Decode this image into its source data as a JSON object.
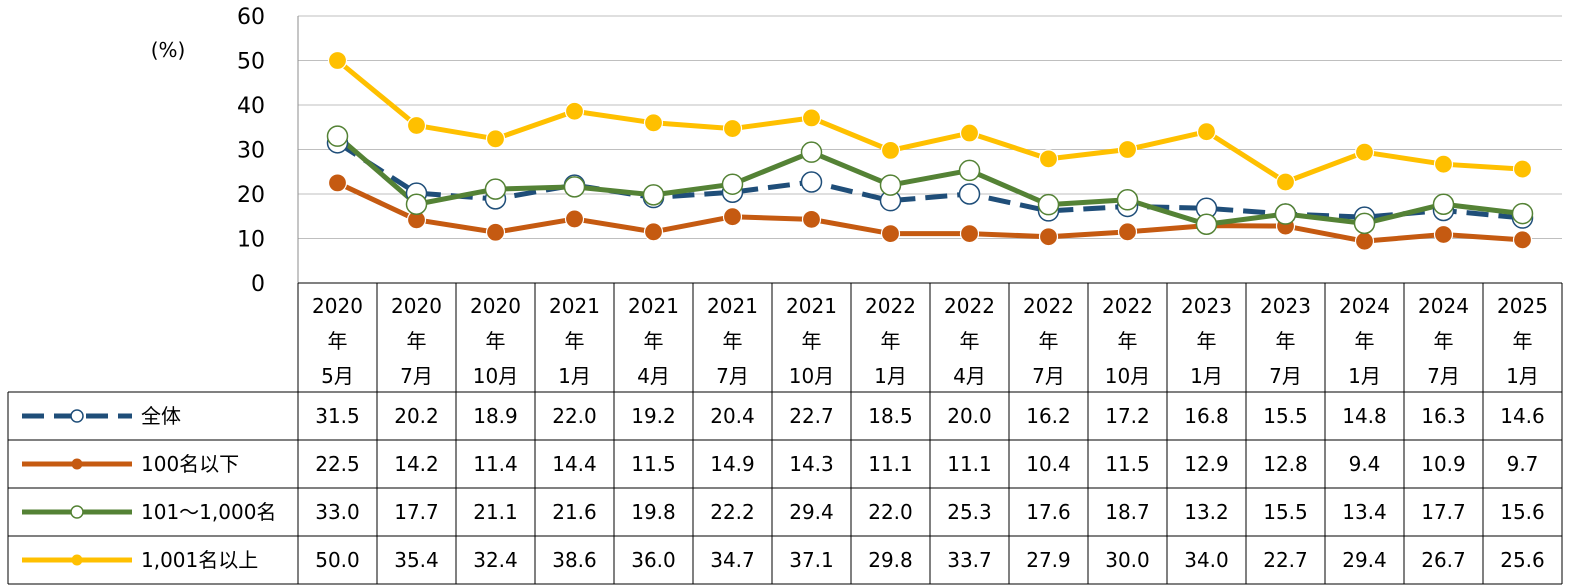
{
  "chart_data": {
    "type": "line",
    "ylabel": "(%)",
    "ylim": [
      0,
      60
    ],
    "yticks": [
      "0",
      "10",
      "20",
      "30",
      "40",
      "50",
      "60"
    ],
    "grid": true,
    "legend": "table-left",
    "categories": [
      {
        "year": "2020",
        "nen": "年",
        "month": "5月"
      },
      {
        "year": "2020",
        "nen": "年",
        "month": "7月"
      },
      {
        "year": "2020",
        "nen": "年",
        "month": "10月"
      },
      {
        "year": "2021",
        "nen": "年",
        "month": "1月"
      },
      {
        "year": "2021",
        "nen": "年",
        "month": "4月"
      },
      {
        "year": "2021",
        "nen": "年",
        "month": "7月"
      },
      {
        "year": "2021",
        "nen": "年",
        "month": "10月"
      },
      {
        "year": "2022",
        "nen": "年",
        "month": "1月"
      },
      {
        "year": "2022",
        "nen": "年",
        "month": "4月"
      },
      {
        "year": "2022",
        "nen": "年",
        "month": "7月"
      },
      {
        "year": "2022",
        "nen": "年",
        "month": "10月"
      },
      {
        "year": "2023",
        "nen": "年",
        "month": "1月"
      },
      {
        "year": "2023",
        "nen": "年",
        "month": "7月"
      },
      {
        "year": "2024",
        "nen": "年",
        "month": "1月"
      },
      {
        "year": "2024",
        "nen": "年",
        "month": "7月"
      },
      {
        "year": "2025",
        "nen": "年",
        "month": "1月"
      }
    ],
    "series": [
      {
        "name": "全体",
        "color": "#1f4e79",
        "style": "dashed",
        "marker": "open-circle",
        "values": [
          "31.5",
          "20.2",
          "18.9",
          "22.0",
          "19.2",
          "20.4",
          "22.7",
          "18.5",
          "20.0",
          "16.2",
          "17.2",
          "16.8",
          "15.5",
          "14.8",
          "16.3",
          "14.6"
        ]
      },
      {
        "name": "100名以下",
        "color": "#c55a11",
        "style": "solid",
        "marker": "filled-circle",
        "values": [
          "22.5",
          "14.2",
          "11.4",
          "14.4",
          "11.5",
          "14.9",
          "14.3",
          "11.1",
          "11.1",
          "10.4",
          "11.5",
          "12.9",
          "12.8",
          "9.4",
          "10.9",
          "9.7"
        ]
      },
      {
        "name": "101～1,000名",
        "color": "#548235",
        "style": "solid",
        "marker": "open-circle",
        "values": [
          "33.0",
          "17.7",
          "21.1",
          "21.6",
          "19.8",
          "22.2",
          "29.4",
          "22.0",
          "25.3",
          "17.6",
          "18.7",
          "13.2",
          "15.5",
          "13.4",
          "17.7",
          "15.6"
        ]
      },
      {
        "name": "1,001名以上",
        "color": "#ffc000",
        "style": "solid",
        "marker": "filled-circle",
        "values": [
          "50.0",
          "35.4",
          "32.4",
          "38.6",
          "36.0",
          "34.7",
          "37.1",
          "29.8",
          "33.7",
          "27.9",
          "30.0",
          "34.0",
          "22.7",
          "29.4",
          "26.7",
          "25.6"
        ]
      }
    ]
  }
}
